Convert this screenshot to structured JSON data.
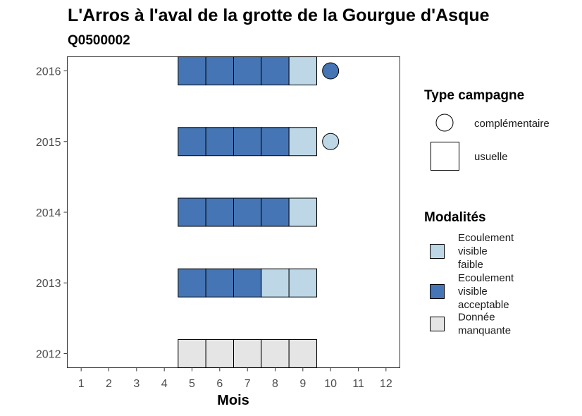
{
  "chart_data": {
    "type": "heatmap",
    "title": "L'Arros à l'aval de la grotte de la Gourgue d'Asque",
    "subtitle": "Q0500002",
    "xlabel": "Mois",
    "ylabel": "",
    "x_ticks": [
      1,
      2,
      3,
      4,
      5,
      6,
      7,
      8,
      9,
      10,
      11,
      12
    ],
    "y_ticks": [
      2012,
      2013,
      2014,
      2015,
      2016
    ],
    "xlim": [
      0.5,
      12.5
    ],
    "ylim": [
      2011.8,
      2016.2
    ],
    "grid": false,
    "legend_position": "right",
    "colors": {
      "faible": "#bdd7e7",
      "acceptable": "#4575b4",
      "manquante": "#e5e5e5",
      "border": "#000000"
    },
    "usuelle": [
      {
        "year": 2016,
        "month": 5,
        "modalite": "acceptable"
      },
      {
        "year": 2016,
        "month": 6,
        "modalite": "acceptable"
      },
      {
        "year": 2016,
        "month": 7,
        "modalite": "acceptable"
      },
      {
        "year": 2016,
        "month": 8,
        "modalite": "acceptable"
      },
      {
        "year": 2016,
        "month": 9,
        "modalite": "faible"
      },
      {
        "year": 2015,
        "month": 5,
        "modalite": "acceptable"
      },
      {
        "year": 2015,
        "month": 6,
        "modalite": "acceptable"
      },
      {
        "year": 2015,
        "month": 7,
        "modalite": "acceptable"
      },
      {
        "year": 2015,
        "month": 8,
        "modalite": "acceptable"
      },
      {
        "year": 2015,
        "month": 9,
        "modalite": "faible"
      },
      {
        "year": 2014,
        "month": 5,
        "modalite": "acceptable"
      },
      {
        "year": 2014,
        "month": 6,
        "modalite": "acceptable"
      },
      {
        "year": 2014,
        "month": 7,
        "modalite": "acceptable"
      },
      {
        "year": 2014,
        "month": 8,
        "modalite": "acceptable"
      },
      {
        "year": 2014,
        "month": 9,
        "modalite": "faible"
      },
      {
        "year": 2013,
        "month": 5,
        "modalite": "acceptable"
      },
      {
        "year": 2013,
        "month": 6,
        "modalite": "acceptable"
      },
      {
        "year": 2013,
        "month": 7,
        "modalite": "acceptable"
      },
      {
        "year": 2013,
        "month": 8,
        "modalite": "faible"
      },
      {
        "year": 2013,
        "month": 9,
        "modalite": "faible"
      },
      {
        "year": 2012,
        "month": 5,
        "modalite": "manquante"
      },
      {
        "year": 2012,
        "month": 6,
        "modalite": "manquante"
      },
      {
        "year": 2012,
        "month": 7,
        "modalite": "manquante"
      },
      {
        "year": 2012,
        "month": 8,
        "modalite": "manquante"
      },
      {
        "year": 2012,
        "month": 9,
        "modalite": "manquante"
      }
    ],
    "complementaire": [
      {
        "year": 2016,
        "month": 10,
        "modalite": "acceptable"
      },
      {
        "year": 2015,
        "month": 10,
        "modalite": "faible"
      }
    ],
    "legend_type": {
      "title": "Type campagne",
      "items": [
        {
          "label": "complémentaire",
          "shape": "circle"
        },
        {
          "label": "usuelle",
          "shape": "square"
        }
      ]
    },
    "legend_modalites": {
      "title": "Modalités",
      "items": [
        {
          "key": "faible",
          "lines": [
            "Ecoulement",
            "visible",
            "faible"
          ]
        },
        {
          "key": "acceptable",
          "lines": [
            "Ecoulement",
            "visible",
            "acceptable"
          ]
        },
        {
          "key": "manquante",
          "lines": [
            "Donnée",
            "manquante"
          ]
        }
      ]
    }
  }
}
